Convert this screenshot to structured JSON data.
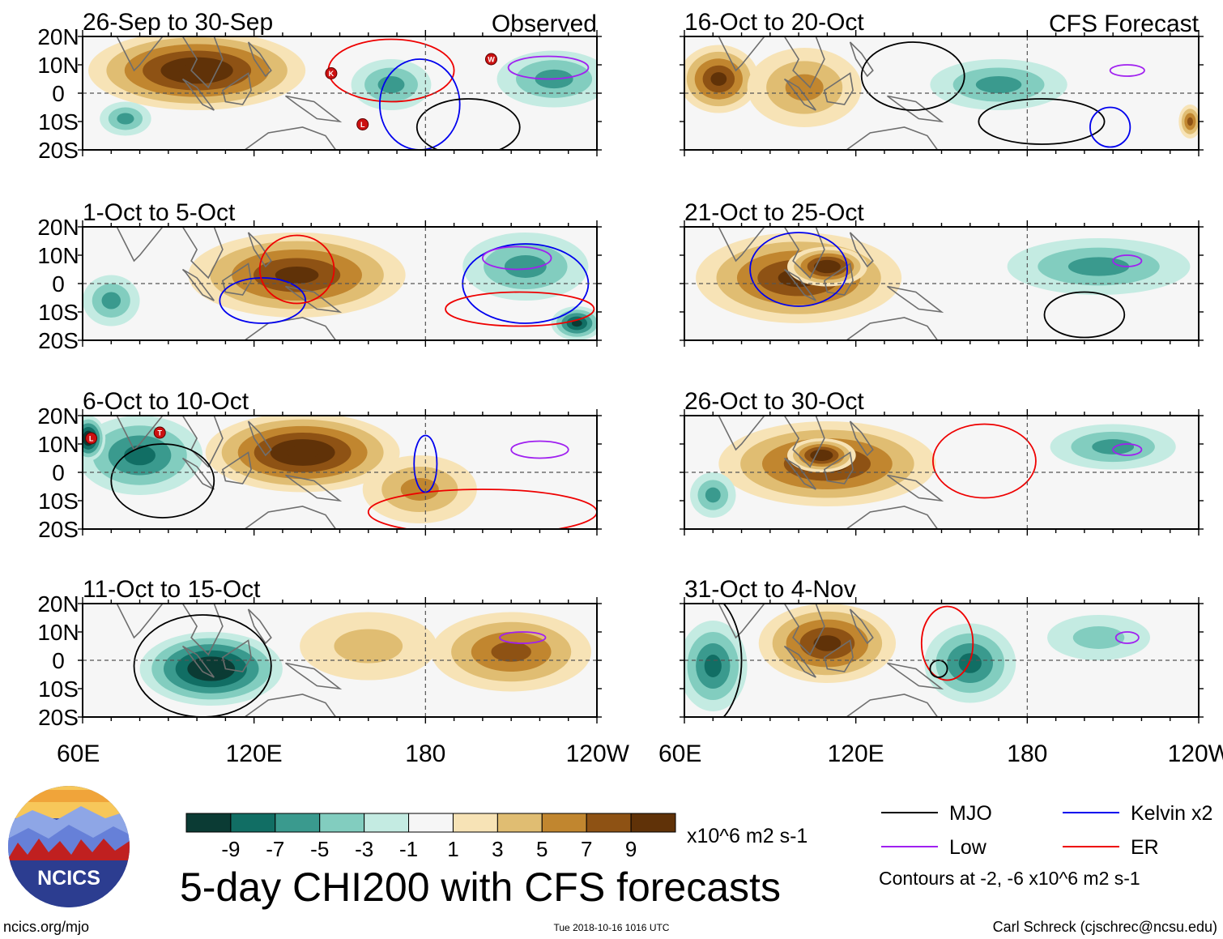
{
  "chart_data": {
    "type": "heatmap",
    "title": "5-day CHI200 with CFS forecasts",
    "units": "x10^6 m2 s-1",
    "x_ticks": [
      "60E",
      "120E",
      "180",
      "120W"
    ],
    "y_ticks": [
      "20N",
      "10N",
      "0",
      "10S",
      "20S"
    ],
    "x_range_deg": [
      60,
      240
    ],
    "y_range_deg": [
      -20,
      20
    ],
    "colorbar": {
      "labels": [
        "-9",
        "-7",
        "-5",
        "-3",
        "-1",
        "1",
        "3",
        "5",
        "7",
        "9"
      ],
      "colors": [
        "#0b3b34",
        "#116e64",
        "#3a9a8e",
        "#82cdbf",
        "#c4ebe2",
        "#f6f6f6",
        "#f7e3b6",
        "#e0bd72",
        "#c1862f",
        "#8e5214",
        "#603208"
      ]
    },
    "panels": [
      {
        "period": "26-Sep to 30-Sep",
        "tag": "Observed",
        "anomalies": [
          {
            "lon": 100,
            "lat": 8,
            "rx": 38,
            "ry": 14,
            "v": 9
          },
          {
            "lon": 75,
            "lat": -9,
            "rx": 9,
            "ry": 6,
            "v": -3
          },
          {
            "lon": 168,
            "lat": 3,
            "rx": 14,
            "ry": 9,
            "v": -3
          },
          {
            "lon": 225,
            "lat": 5,
            "rx": 20,
            "ry": 10,
            "v": -3
          }
        ],
        "contours": [
          {
            "type": "ER",
            "lon": 168,
            "lat": 8,
            "rx": 22,
            "ry": 11
          },
          {
            "type": "Kelvin",
            "lon": 178,
            "lat": -4,
            "rx": 14,
            "ry": 16
          },
          {
            "type": "MJO",
            "lon": 195,
            "lat": -12,
            "rx": 18,
            "ry": 10
          },
          {
            "type": "Low",
            "lon": 223,
            "lat": 9,
            "rx": 14,
            "ry": 4
          }
        ],
        "storms": [
          {
            "label": "K",
            "lon": 147,
            "lat": 7
          },
          {
            "label": "L",
            "lon": 158,
            "lat": -11
          },
          {
            "label": "W",
            "lon": 203,
            "lat": 12
          }
        ]
      },
      {
        "period": "1-Oct to 5-Oct",
        "tag": "",
        "anomalies": [
          {
            "lon": 135,
            "lat": 3,
            "rx": 38,
            "ry": 15,
            "v": 8
          },
          {
            "lon": 70,
            "lat": -6,
            "rx": 10,
            "ry": 9,
            "v": -3
          },
          {
            "lon": 215,
            "lat": 6,
            "rx": 22,
            "ry": 12,
            "v": -4
          },
          {
            "lon": 233,
            "lat": -14,
            "rx": 9,
            "ry": 6,
            "v": -7
          }
        ],
        "contours": [
          {
            "type": "Kelvin",
            "lon": 123,
            "lat": -6,
            "rx": 15,
            "ry": 8
          },
          {
            "type": "ER",
            "lon": 135,
            "lat": 5,
            "rx": 13,
            "ry": 12
          },
          {
            "type": "Kelvin",
            "lon": 215,
            "lat": 0,
            "rx": 22,
            "ry": 14
          },
          {
            "type": "ER",
            "lon": 213,
            "lat": -9,
            "rx": 26,
            "ry": 6
          },
          {
            "type": "Low",
            "lon": 212,
            "lat": 9,
            "rx": 12,
            "ry": 4
          }
        ],
        "storms": []
      },
      {
        "period": "6-Oct to 10-Oct",
        "tag": "",
        "anomalies": [
          {
            "lon": 80,
            "lat": 6,
            "rx": 22,
            "ry": 14,
            "v": -5
          },
          {
            "lon": 62,
            "lat": 12,
            "rx": 6,
            "ry": 8,
            "v": -9
          },
          {
            "lon": 137,
            "lat": 7,
            "rx": 34,
            "ry": 14,
            "v": 9
          },
          {
            "lon": 178,
            "lat": -6,
            "rx": 20,
            "ry": 12,
            "v": 3
          }
        ],
        "contours": [
          {
            "type": "MJO",
            "lon": 88,
            "lat": -3,
            "rx": 18,
            "ry": 13
          },
          {
            "type": "ER",
            "lon": 200,
            "lat": -14,
            "rx": 40,
            "ry": 8
          },
          {
            "type": "Low",
            "lon": 220,
            "lat": 8,
            "rx": 10,
            "ry": 3
          },
          {
            "type": "Kelvin",
            "lon": 180,
            "lat": 3,
            "rx": 4,
            "ry": 10
          }
        ],
        "storms": [
          {
            "label": "L",
            "lon": 63,
            "lat": 12
          },
          {
            "label": "T",
            "lon": 87,
            "lat": 14
          }
        ]
      },
      {
        "period": "11-Oct to 15-Oct",
        "tag": "",
        "anomalies": [
          {
            "lon": 105,
            "lat": -3,
            "rx": 25,
            "ry": 13,
            "v": -9
          },
          {
            "lon": 210,
            "lat": 3,
            "rx": 28,
            "ry": 14,
            "v": 6
          },
          {
            "lon": 160,
            "lat": 5,
            "rx": 24,
            "ry": 12,
            "v": 2
          }
        ],
        "contours": [
          {
            "type": "MJO",
            "lon": 102,
            "lat": -2,
            "rx": 24,
            "ry": 18
          },
          {
            "type": "Low",
            "lon": 214,
            "lat": 8,
            "rx": 8,
            "ry": 2
          }
        ],
        "storms": []
      },
      {
        "period": "16-Oct to 20-Oct",
        "tag": "CFS Forecast",
        "anomalies": [
          {
            "lon": 72,
            "lat": 5,
            "rx": 14,
            "ry": 12,
            "v": 7
          },
          {
            "lon": 102,
            "lat": 2,
            "rx": 20,
            "ry": 14,
            "v": 4
          },
          {
            "lon": 170,
            "lat": 3,
            "rx": 24,
            "ry": 9,
            "v": -3
          },
          {
            "lon": 237,
            "lat": -10,
            "rx": 4,
            "ry": 6,
            "v": 5
          }
        ],
        "contours": [
          {
            "type": "MJO",
            "lon": 140,
            "lat": 6,
            "rx": 18,
            "ry": 12
          },
          {
            "type": "MJO",
            "lon": 185,
            "lat": -10,
            "rx": 22,
            "ry": 8
          },
          {
            "type": "Kelvin",
            "lon": 209,
            "lat": -12,
            "rx": 7,
            "ry": 7
          },
          {
            "type": "Low",
            "lon": 215,
            "lat": 8,
            "rx": 6,
            "ry": 2
          }
        ],
        "storms": []
      },
      {
        "period": "21-Oct to 25-Oct",
        "tag": "",
        "anomalies": [
          {
            "lon": 100,
            "lat": 2,
            "rx": 36,
            "ry": 16,
            "v": 7
          },
          {
            "lon": 110,
            "lat": 6,
            "rx": 14,
            "ry": 7,
            "v": 9
          },
          {
            "lon": 205,
            "lat": 6,
            "rx": 32,
            "ry": 10,
            "v": -4
          }
        ],
        "contours": [
          {
            "type": "Kelvin",
            "lon": 100,
            "lat": 5,
            "rx": 17,
            "ry": 13
          },
          {
            "type": "MJO",
            "lon": 200,
            "lat": -11,
            "rx": 14,
            "ry": 8
          },
          {
            "type": "Low",
            "lon": 215,
            "lat": 8,
            "rx": 5,
            "ry": 2
          }
        ],
        "storms": []
      },
      {
        "period": "26-Oct to 30-Oct",
        "tag": "",
        "anomalies": [
          {
            "lon": 110,
            "lat": 3,
            "rx": 38,
            "ry": 15,
            "v": 8
          },
          {
            "lon": 108,
            "lat": 6,
            "rx": 12,
            "ry": 6,
            "v": 10
          },
          {
            "lon": 210,
            "lat": 9,
            "rx": 22,
            "ry": 8,
            "v": -3
          },
          {
            "lon": 70,
            "lat": -8,
            "rx": 8,
            "ry": 8,
            "v": -3
          }
        ],
        "contours": [
          {
            "type": "ER",
            "lon": 165,
            "lat": 4,
            "rx": 18,
            "ry": 13
          },
          {
            "type": "Low",
            "lon": 215,
            "lat": 8,
            "rx": 5,
            "ry": 2
          }
        ],
        "storms": []
      },
      {
        "period": "31-Oct to 4-Nov",
        "tag": "",
        "anomalies": [
          {
            "lon": 110,
            "lat": 6,
            "rx": 24,
            "ry": 14,
            "v": 7
          },
          {
            "lon": 160,
            "lat": -1,
            "rx": 16,
            "ry": 14,
            "v": -5
          },
          {
            "lon": 70,
            "lat": -2,
            "rx": 12,
            "ry": 16,
            "v": -5
          },
          {
            "lon": 205,
            "lat": 8,
            "rx": 18,
            "ry": 8,
            "v": -2
          }
        ],
        "contours": [
          {
            "type": "ER",
            "lon": 152,
            "lat": 6,
            "rx": 9,
            "ry": 13
          },
          {
            "type": "MJO",
            "lon": 149,
            "lat": -3,
            "rx": 3,
            "ry": 3
          },
          {
            "type": "MJO",
            "lon": 66,
            "lat": 0,
            "rx": 14,
            "ry": 24
          },
          {
            "type": "Low",
            "lon": 215,
            "lat": 8,
            "rx": 4,
            "ry": 2
          }
        ],
        "storms": []
      }
    ]
  },
  "legend": {
    "items": [
      {
        "key": "MJO",
        "label": "MJO",
        "color": "#000000"
      },
      {
        "key": "Kelvin",
        "label": "Kelvin x2",
        "color": "#0000ee"
      },
      {
        "key": "Low",
        "label": "Low",
        "color": "#a020f0"
      },
      {
        "key": "ER",
        "label": "ER",
        "color": "#ee0000"
      }
    ],
    "note": "Contours at -2, -6 x10^6 m2 s-1"
  },
  "footer": {
    "logo_text": "NCICS",
    "url": "ncics.org/mjo",
    "timestamp": "Tue 2018-10-16 1016 UTC",
    "credit": "Carl Schreck (cjschrec@ncsu.edu)"
  }
}
